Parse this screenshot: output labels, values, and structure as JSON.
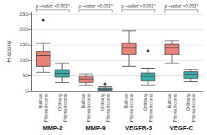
{
  "chart_data": {
    "type": "boxplot",
    "ylabel": "H-score",
    "categories": [
      "MMP-2",
      "MMP-9",
      "VEGFR-3",
      "VEGF-C"
    ],
    "series": [
      {
        "name": "Bullous\nPilomatricoma",
        "color": "#E8837A",
        "values": [
          [
            60,
            80,
            115,
            128,
            155
          ],
          [
            18,
            28,
            38,
            47,
            55
          ],
          [
            80,
            118,
            140,
            155,
            195
          ],
          [
            90,
            118,
            140,
            152,
            163
          ]
        ],
        "fliers": [
          [
            230
          ],
          [],
          [],
          []
        ]
      },
      {
        "name": "Ordinary\nPilomatricoma",
        "color": "#3AACAA",
        "values": [
          [
            28,
            45,
            57,
            68,
            90
          ],
          [
            0,
            2,
            5,
            9,
            14
          ],
          [
            18,
            33,
            48,
            58,
            73
          ],
          [
            30,
            40,
            53,
            63,
            70
          ]
        ],
        "fliers": [
          [],
          [
            22
          ],
          [
            130
          ],
          []
        ]
      }
    ],
    "annotations": [
      {
        "category": "MMP-2",
        "text": "p –value <0.001*"
      },
      {
        "category": "MMP-9",
        "text": "p –value <0.001*"
      },
      {
        "category": "VEGFR-3",
        "text": "p –value <0.001*"
      },
      {
        "category": "VEGF-C",
        "text": "p –value <0.001*"
      }
    ],
    "ylim": [
      0,
      255
    ],
    "yticks": [
      0,
      50,
      100,
      150,
      200,
      250
    ],
    "grid": true
  }
}
